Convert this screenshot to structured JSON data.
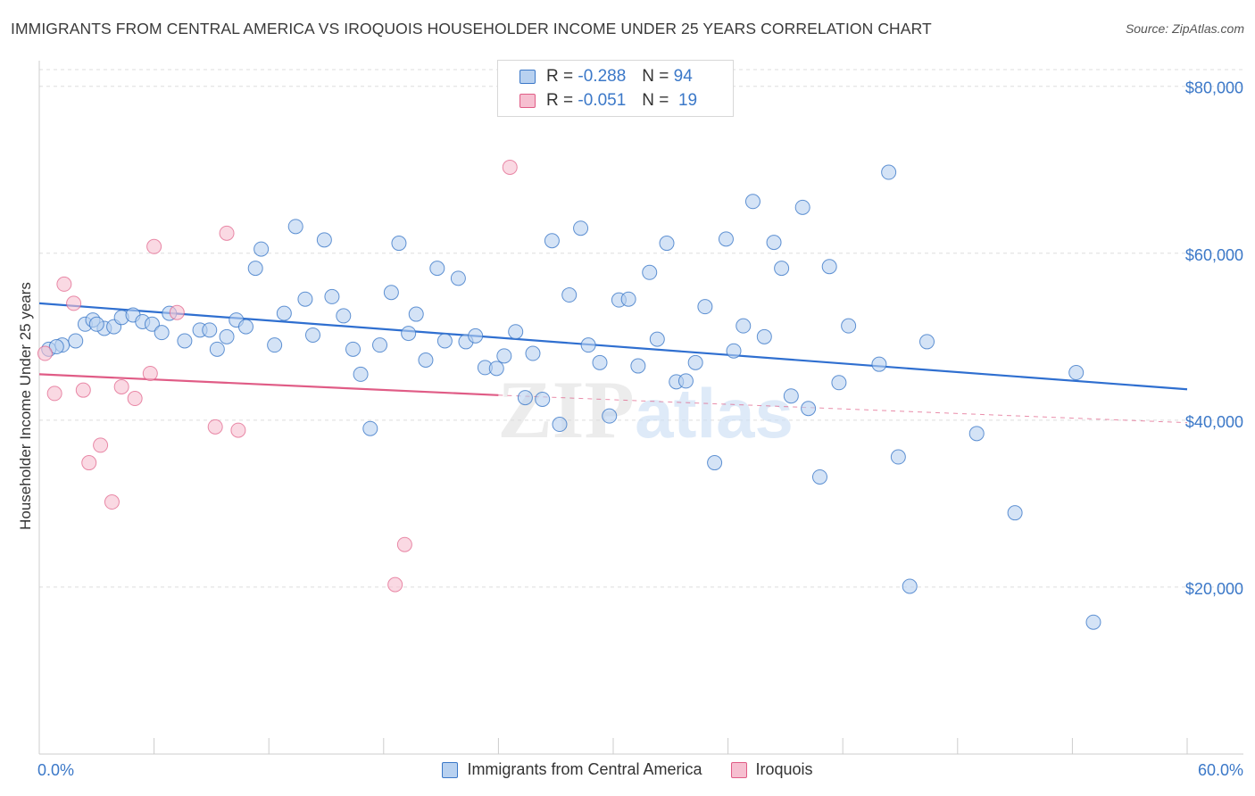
{
  "title": "IMMIGRANTS FROM CENTRAL AMERICA VS IROQUOIS HOUSEHOLDER INCOME UNDER 25 YEARS CORRELATION CHART",
  "source": "Source: ZipAtlas.com",
  "watermark": {
    "zip": "ZIP",
    "atlas": "atlas"
  },
  "colors": {
    "blue": "#3b78c8",
    "blue_fill": "#b8d1f0",
    "blue_line": "#2f6fd0",
    "pink": "#e05c86",
    "pink_fill": "#f6bfd0",
    "axis_label_blue": "#3b78c8"
  },
  "legend": {
    "rows": [
      {
        "r_label": "R =",
        "r_value": "-0.288",
        "n_label": "N =",
        "n_value": "94"
      },
      {
        "r_label": "R =",
        "r_value": "-0.051",
        "n_label": "N =",
        "n_value": "19"
      }
    ]
  },
  "bottom_legend": [
    "Immigrants from Central America",
    "Iroquois"
  ],
  "chart_data": {
    "type": "scatter",
    "title": "IMMIGRANTS FROM CENTRAL AMERICA VS IROQUOIS HOUSEHOLDER INCOME UNDER 25 YEARS CORRELATION CHART",
    "xlabel": "",
    "ylabel": "Householder Income Under 25 years",
    "xlim": [
      0,
      60
    ],
    "ylim": [
      0,
      82000
    ],
    "x_tick_labels": [
      "0.0%",
      "60.0%"
    ],
    "y_ticks": [
      20000,
      40000,
      60000,
      80000
    ],
    "y_tick_labels": [
      "$20,000",
      "$40,000",
      "$60,000",
      "$80,000"
    ],
    "grid": "horizontal dashed",
    "legend_position": "top-center",
    "series": [
      {
        "name": "Immigrants from Central America",
        "color": "#3b78c8",
        "trend": {
          "x": [
            0,
            60
          ],
          "y": [
            54000,
            43700
          ]
        },
        "points": [
          [
            0.5,
            48500
          ],
          [
            1.2,
            49000
          ],
          [
            1.9,
            49500
          ],
          [
            2.4,
            51500
          ],
          [
            2.8,
            52000
          ],
          [
            3.4,
            51000
          ],
          [
            3.9,
            51200
          ],
          [
            4.3,
            52300
          ],
          [
            4.9,
            52600
          ],
          [
            5.4,
            51800
          ],
          [
            5.9,
            51500
          ],
          [
            6.4,
            50500
          ],
          [
            6.8,
            52800
          ],
          [
            7.6,
            49500
          ],
          [
            8.4,
            50800
          ],
          [
            8.9,
            50800
          ],
          [
            9.3,
            48500
          ],
          [
            9.8,
            50000
          ],
          [
            10.3,
            52000
          ],
          [
            10.8,
            51200
          ],
          [
            11.3,
            58200
          ],
          [
            11.6,
            60500
          ],
          [
            12.3,
            49000
          ],
          [
            12.8,
            52800
          ],
          [
            13.4,
            63200
          ],
          [
            13.9,
            54500
          ],
          [
            14.3,
            50200
          ],
          [
            14.9,
            61600
          ],
          [
            15.3,
            54800
          ],
          [
            15.9,
            52500
          ],
          [
            16.4,
            48500
          ],
          [
            16.8,
            45500
          ],
          [
            17.3,
            39000
          ],
          [
            17.8,
            49000
          ],
          [
            18.4,
            55300
          ],
          [
            18.8,
            61200
          ],
          [
            19.3,
            50400
          ],
          [
            19.7,
            52700
          ],
          [
            20.2,
            47200
          ],
          [
            20.8,
            58200
          ],
          [
            21.2,
            49500
          ],
          [
            21.9,
            57000
          ],
          [
            22.3,
            49400
          ],
          [
            22.8,
            50100
          ],
          [
            23.3,
            46300
          ],
          [
            23.9,
            46200
          ],
          [
            24.3,
            47700
          ],
          [
            24.9,
            50600
          ],
          [
            25.4,
            42700
          ],
          [
            25.8,
            48000
          ],
          [
            26.3,
            42500
          ],
          [
            26.8,
            61500
          ],
          [
            27.2,
            39500
          ],
          [
            27.7,
            55000
          ],
          [
            28.3,
            63000
          ],
          [
            28.7,
            49000
          ],
          [
            29.3,
            46900
          ],
          [
            29.8,
            40500
          ],
          [
            30.3,
            54400
          ],
          [
            30.8,
            54500
          ],
          [
            31.3,
            46500
          ],
          [
            31.9,
            57700
          ],
          [
            32.3,
            49700
          ],
          [
            32.8,
            61200
          ],
          [
            33.3,
            44600
          ],
          [
            33.8,
            44700
          ],
          [
            34.3,
            46900
          ],
          [
            34.8,
            53600
          ],
          [
            35.3,
            34900
          ],
          [
            35.9,
            61700
          ],
          [
            36.3,
            48300
          ],
          [
            36.8,
            51300
          ],
          [
            37.3,
            66200
          ],
          [
            37.9,
            50000
          ],
          [
            38.4,
            61300
          ],
          [
            38.8,
            58200
          ],
          [
            39.3,
            42900
          ],
          [
            39.9,
            65500
          ],
          [
            40.2,
            41400
          ],
          [
            40.8,
            33200
          ],
          [
            41.3,
            58400
          ],
          [
            41.8,
            44500
          ],
          [
            42.3,
            51300
          ],
          [
            43.9,
            46700
          ],
          [
            44.4,
            69700
          ],
          [
            44.9,
            35600
          ],
          [
            45.5,
            20100
          ],
          [
            46.4,
            49400
          ],
          [
            49.0,
            38400
          ],
          [
            51.0,
            28900
          ],
          [
            54.2,
            45700
          ],
          [
            55.1,
            15800
          ],
          [
            0.9,
            48800
          ],
          [
            3.0,
            51500
          ]
        ]
      },
      {
        "name": "Iroquois",
        "color": "#e05c86",
        "trend": {
          "x": [
            0,
            24
          ],
          "y": [
            45500,
            43000
          ]
        },
        "trend_dashed": {
          "x": [
            24,
            60
          ],
          "y": [
            43000,
            39700
          ]
        },
        "points": [
          [
            0.3,
            48000
          ],
          [
            0.8,
            43200
          ],
          [
            1.3,
            56300
          ],
          [
            1.8,
            54000
          ],
          [
            2.3,
            43600
          ],
          [
            3.2,
            37000
          ],
          [
            2.6,
            34900
          ],
          [
            3.8,
            30200
          ],
          [
            4.3,
            44000
          ],
          [
            5.0,
            42600
          ],
          [
            5.8,
            45600
          ],
          [
            6.0,
            60800
          ],
          [
            7.2,
            52900
          ],
          [
            9.2,
            39200
          ],
          [
            9.8,
            62400
          ],
          [
            10.4,
            38800
          ],
          [
            19.1,
            25100
          ],
          [
            18.6,
            20300
          ],
          [
            24.6,
            70300
          ]
        ]
      }
    ]
  }
}
